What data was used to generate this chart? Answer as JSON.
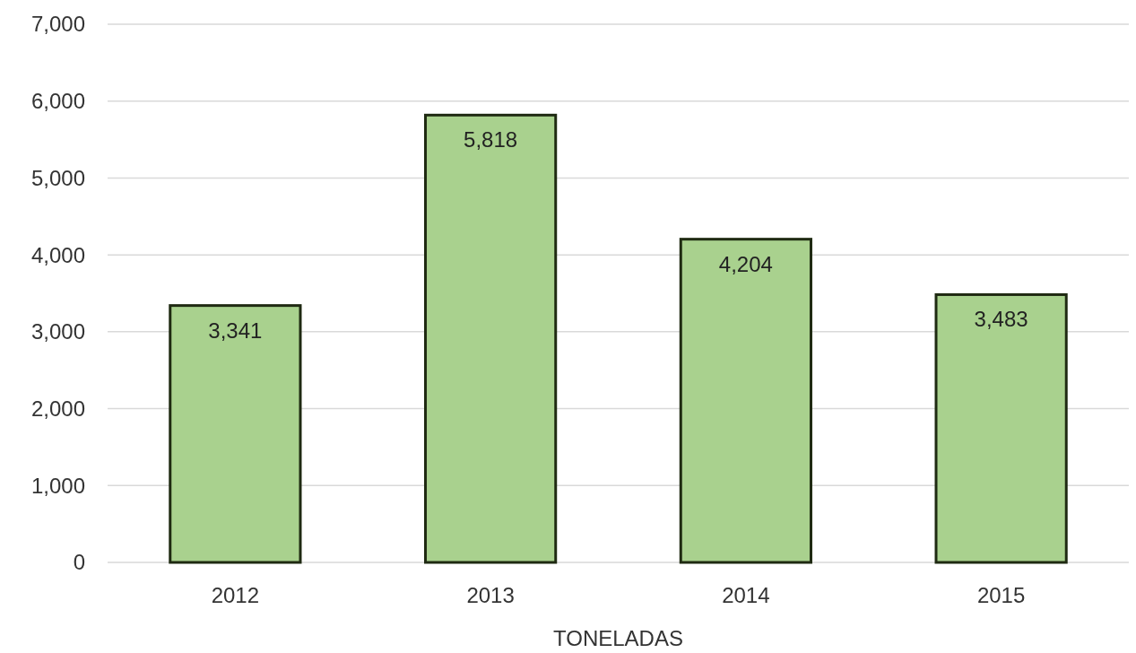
{
  "chart_data": {
    "type": "bar",
    "xlabel": "TONELADAS",
    "categories": [
      "2012",
      "2013",
      "2014",
      "2015"
    ],
    "values": [
      3341,
      5818,
      4204,
      3483
    ],
    "value_labels": [
      "3,341",
      "5,818",
      "4,204",
      "3,483"
    ],
    "color": "#a9d18e",
    "ylim": [
      0,
      7000
    ],
    "yticks": [
      {
        "value": 0,
        "label": "0"
      },
      {
        "value": 1000,
        "label": "1,000"
      },
      {
        "value": 2000,
        "label": "2,000"
      },
      {
        "value": 3000,
        "label": "3,000"
      },
      {
        "value": 4000,
        "label": "4,000"
      },
      {
        "value": 5000,
        "label": "5,000"
      },
      {
        "value": 6000,
        "label": "6,000"
      },
      {
        "value": 7000,
        "label": "7,000"
      }
    ],
    "grid": "y"
  }
}
